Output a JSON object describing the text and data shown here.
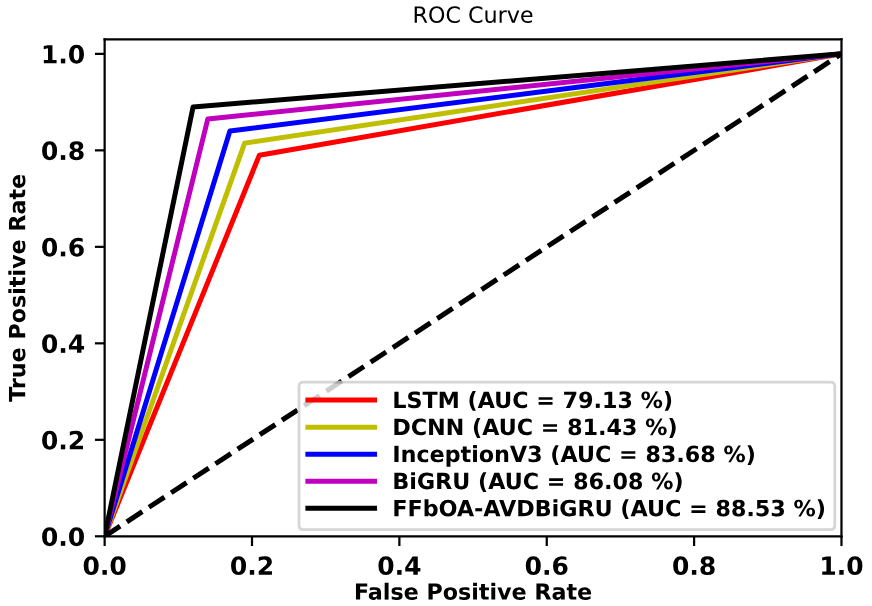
{
  "chart_data": {
    "type": "line",
    "title": "ROC Curve",
    "xlabel": "False Positive Rate",
    "ylabel": "True Positive Rate",
    "x": [
      0,
      0.21,
      1
    ],
    "series": [
      {
        "name": "LSTM (AUC = 79.13 %)",
        "color": "#ff0000",
        "values": [
          0,
          0.79,
          1
        ]
      },
      {
        "name": "DCNN (AUC = 81.43 %)",
        "color": "#bfbf00",
        "values": [
          0,
          0.815,
          1
        ],
        "x": [
          0,
          0.19,
          1
        ]
      },
      {
        "name": "InceptionV3 (AUC = 83.68 %)",
        "color": "#0000ff",
        "values": [
          0,
          0.84,
          1
        ],
        "x": [
          0,
          0.17,
          1
        ]
      },
      {
        "name": "BiGRU (AUC = 86.08 %)",
        "color": "#bf00bf",
        "values": [
          0,
          0.865,
          1
        ],
        "x": [
          0,
          0.14,
          1
        ]
      },
      {
        "name": "FFbOA-AVDBiGRU (AUC = 88.53 %)",
        "color": "#000000",
        "values": [
          0,
          0.89,
          1
        ],
        "x": [
          0,
          0.12,
          1
        ]
      },
      {
        "color": "#000000",
        "values": [
          0,
          1
        ],
        "x": [
          0,
          1
        ],
        "line_style": "dashed"
      }
    ],
    "xlim": [
      0,
      1
    ],
    "ylim": [
      0,
      1.03
    ],
    "xticks": [
      {
        "value": 0,
        "label": "0.0"
      },
      0.2,
      0.4,
      0.6,
      0.8,
      {
        "value": 1,
        "label": "1.0"
      }
    ],
    "yticks": [
      {
        "value": 0,
        "label": "0.0"
      },
      0.2,
      0.4,
      0.6,
      0.8,
      {
        "value": 1,
        "label": "1.0"
      }
    ],
    "legend": "bottom right",
    "grid": false,
    "marker": "none",
    "line_style": "solid"
  }
}
